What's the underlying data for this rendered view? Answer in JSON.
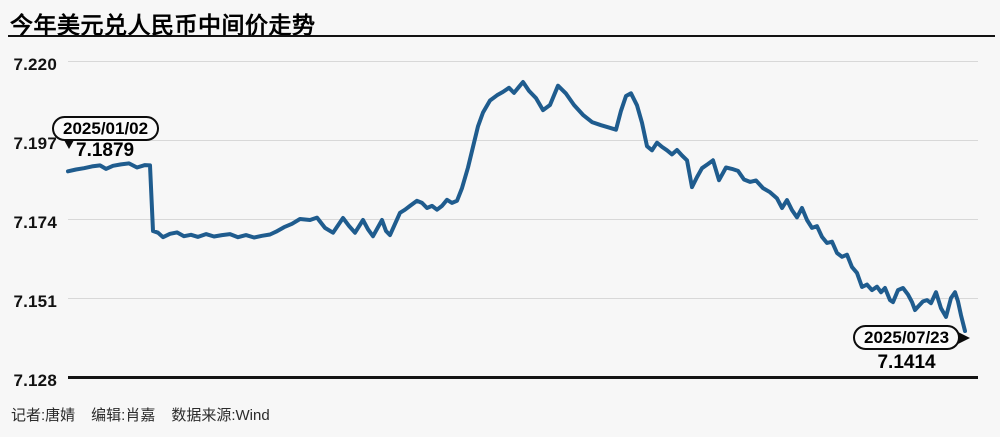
{
  "page": {
    "title": "今年美元兑人民币中间价走势",
    "footer": {
      "reporter": "记者:唐婧",
      "editor": "编辑:肖嘉",
      "source": "数据来源:Wind"
    }
  },
  "chart_data": {
    "type": "line",
    "title": "今年美元兑人民币中间价走势",
    "xlabel": "",
    "ylabel": "",
    "ylim": [
      7.128,
      7.22
    ],
    "yticks": [
      7.22,
      7.197,
      7.174,
      7.151,
      7.128
    ],
    "ytick_labels": [
      "7.220",
      "7.197",
      "7.174",
      "7.151",
      "7.128"
    ],
    "grid": "horizontal",
    "legend": "none",
    "line_color": "#1f5c8e",
    "source": "Wind",
    "annotations": [
      {
        "date": "2025/01/02",
        "value": "7.1879",
        "position": "start"
      },
      {
        "date": "2025/07/23",
        "value": "7.1414",
        "position": "end"
      }
    ],
    "series": [
      {
        "points": [
          [
            68,
            7.1879
          ],
          [
            76,
            7.1884
          ],
          [
            84,
            7.1888
          ],
          [
            92,
            7.1893
          ],
          [
            100,
            7.1896
          ],
          [
            106,
            7.1886
          ],
          [
            113,
            7.1895
          ],
          [
            121,
            7.1899
          ],
          [
            129,
            7.1902
          ],
          [
            137,
            7.189
          ],
          [
            145,
            7.1897
          ],
          [
            150,
            7.1896
          ],
          [
            153,
            7.1705
          ],
          [
            158,
            7.17
          ],
          [
            163,
            7.1687
          ],
          [
            170,
            7.1697
          ],
          [
            177,
            7.1701
          ],
          [
            184,
            7.169
          ],
          [
            191,
            7.1694
          ],
          [
            198,
            7.1688
          ],
          [
            206,
            7.1696
          ],
          [
            214,
            7.1689
          ],
          [
            222,
            7.1693
          ],
          [
            230,
            7.1696
          ],
          [
            238,
            7.1687
          ],
          [
            246,
            7.1693
          ],
          [
            254,
            7.1686
          ],
          [
            262,
            7.1691
          ],
          [
            270,
            7.1695
          ],
          [
            276,
            7.1703
          ],
          [
            284,
            7.1716
          ],
          [
            292,
            7.1726
          ],
          [
            300,
            7.174
          ],
          [
            310,
            7.1737
          ],
          [
            317,
            7.1744
          ],
          [
            325,
            7.1714
          ],
          [
            333,
            7.17
          ],
          [
            343,
            7.1743
          ],
          [
            349,
            7.172
          ],
          [
            355,
            7.17
          ],
          [
            363,
            7.1737
          ],
          [
            368,
            7.171
          ],
          [
            373,
            7.169
          ],
          [
            382,
            7.1737
          ],
          [
            386,
            7.1705
          ],
          [
            390,
            7.1693
          ],
          [
            400,
            7.1758
          ],
          [
            405,
            7.1767
          ],
          [
            410,
            7.1778
          ],
          [
            417,
            7.1793
          ],
          [
            422,
            7.1787
          ],
          [
            427,
            7.1772
          ],
          [
            432,
            7.1778
          ],
          [
            437,
            7.1767
          ],
          [
            442,
            7.1778
          ],
          [
            447,
            7.1796
          ],
          [
            452,
            7.1787
          ],
          [
            457,
            7.1793
          ],
          [
            462,
            7.183
          ],
          [
            468,
            7.189
          ],
          [
            473,
            7.195
          ],
          [
            478,
            7.201
          ],
          [
            483,
            7.205
          ],
          [
            490,
            7.2085
          ],
          [
            497,
            7.21
          ],
          [
            503,
            7.211
          ],
          [
            509,
            7.2122
          ],
          [
            514,
            7.2107
          ],
          [
            519,
            7.2125
          ],
          [
            523,
            7.2139
          ],
          [
            529,
            7.2113
          ],
          [
            536,
            7.2092
          ],
          [
            543,
            7.2057
          ],
          [
            550,
            7.2072
          ],
          [
            558,
            7.2128
          ],
          [
            566,
            7.2105
          ],
          [
            574,
            7.2072
          ],
          [
            583,
            7.2043
          ],
          [
            592,
            7.2022
          ],
          [
            601,
            7.2013
          ],
          [
            609,
            7.2006
          ],
          [
            616,
            7.2
          ],
          [
            621,
            7.2055
          ],
          [
            626,
            7.2098
          ],
          [
            631,
            7.2106
          ],
          [
            637,
            7.2071
          ],
          [
            642,
            7.202
          ],
          [
            647,
            7.1952
          ],
          [
            652,
            7.194
          ],
          [
            657,
            7.1962
          ],
          [
            662,
            7.195
          ],
          [
            667,
            7.194
          ],
          [
            672,
            7.1928
          ],
          [
            677,
            7.1941
          ],
          [
            682,
            7.1925
          ],
          [
            687,
            7.1911
          ],
          [
            692,
            7.1833
          ],
          [
            697,
            7.1862
          ],
          [
            702,
            7.1888
          ],
          [
            708,
            7.19
          ],
          [
            713,
            7.1911
          ],
          [
            719,
            7.1853
          ],
          [
            726,
            7.189
          ],
          [
            732,
            7.1886
          ],
          [
            738,
            7.188
          ],
          [
            744,
            7.1855
          ],
          [
            750,
            7.1848
          ],
          [
            756,
            7.1852
          ],
          [
            763,
            7.183
          ],
          [
            770,
            7.1818
          ],
          [
            777,
            7.18
          ],
          [
            782,
            7.1772
          ],
          [
            787,
            7.1795
          ],
          [
            792,
            7.1766
          ],
          [
            797,
            7.1745
          ],
          [
            802,
            7.1772
          ],
          [
            807,
            7.1737
          ],
          [
            812,
            7.1714
          ],
          [
            817,
            7.1719
          ],
          [
            822,
            7.1688
          ],
          [
            827,
            7.167
          ],
          [
            832,
            7.1674
          ],
          [
            837,
            7.1641
          ],
          [
            842,
            7.163
          ],
          [
            847,
            7.1636
          ],
          [
            852,
            7.16
          ],
          [
            857,
            7.1583
          ],
          [
            862,
            7.1542
          ],
          [
            867,
            7.1549
          ],
          [
            872,
            7.1533
          ],
          [
            877,
            7.1543
          ],
          [
            881,
            7.1527
          ],
          [
            885,
            7.1539
          ],
          [
            890,
            7.1504
          ],
          [
            893,
            7.1498
          ],
          [
            898,
            7.1533
          ],
          [
            903,
            7.1539
          ],
          [
            908,
            7.152
          ],
          [
            912,
            7.1498
          ],
          [
            915,
            7.1475
          ],
          [
            919,
            7.1488
          ],
          [
            923,
            7.15
          ],
          [
            927,
            7.1504
          ],
          [
            931,
            7.1495
          ],
          [
            936,
            7.1527
          ],
          [
            941,
            7.148
          ],
          [
            946,
            7.1455
          ],
          [
            951,
            7.151
          ],
          [
            955,
            7.1527
          ],
          [
            958,
            7.15
          ],
          [
            961,
            7.146
          ],
          [
            965,
            7.1414
          ]
        ]
      }
    ]
  }
}
